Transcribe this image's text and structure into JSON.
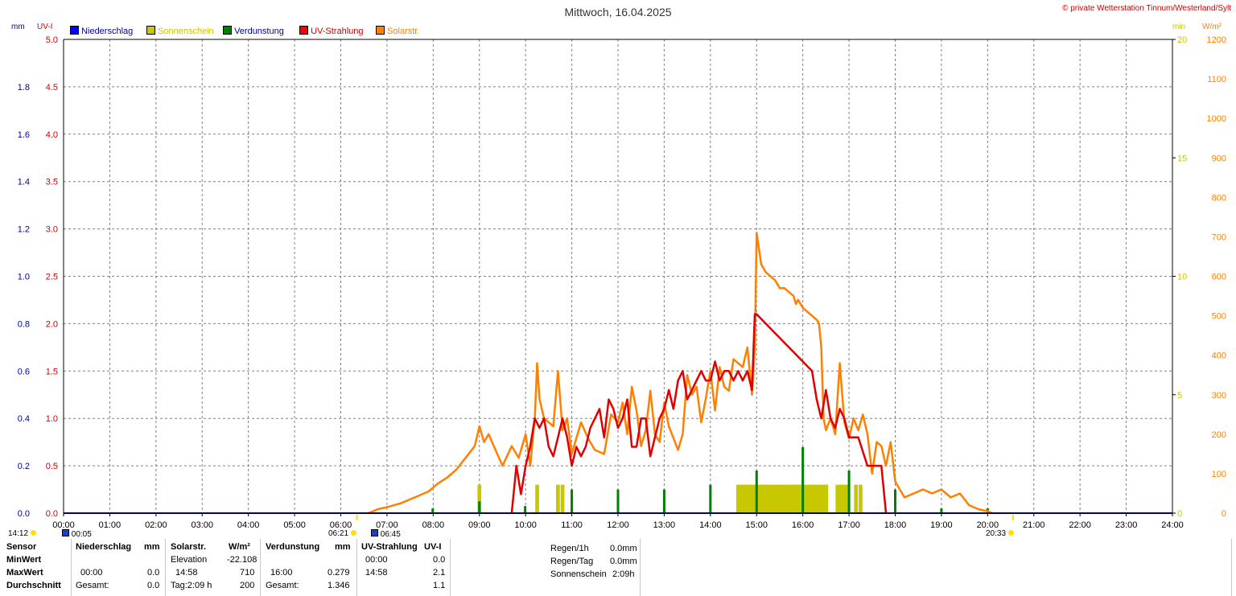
{
  "header": {
    "title": "Mittwoch, 16.04.2025",
    "copyright": "© private Wetterstation Tinnum/Westerland/Sylt"
  },
  "axes": {
    "left_outer_unit": "mm",
    "left_inner_unit": "UV-I",
    "right_inner_unit": "min",
    "right_outer_unit": "W/m²",
    "mm_ticks": [
      "0.0",
      "0.2",
      "0.4",
      "0.6",
      "0.8",
      "1.0",
      "1.2",
      "1.4",
      "1.6",
      "1.8"
    ],
    "uv_ticks": [
      "0.0",
      "0.5",
      "1.0",
      "1.5",
      "2.0",
      "2.5",
      "3.0",
      "3.5",
      "4.0",
      "4.5",
      "5.0"
    ],
    "min_ticks": [
      "0",
      "5",
      "10",
      "15",
      "20"
    ],
    "wm2_ticks": [
      "0",
      "100",
      "200",
      "300",
      "400",
      "500",
      "600",
      "700",
      "800",
      "900",
      "1000",
      "1100",
      "1200"
    ],
    "x_ticks": [
      "00:00",
      "01:00",
      "02:00",
      "03:00",
      "04:00",
      "05:00",
      "06:00",
      "07:00",
      "08:00",
      "09:00",
      "10:00",
      "11:00",
      "12:00",
      "13:00",
      "14:00",
      "15:00",
      "16:00",
      "17:00",
      "18:00",
      "19:00",
      "20:00",
      "21:00",
      "22:00",
      "23:00",
      "24:00"
    ]
  },
  "legend": [
    {
      "label": "Niederschlag",
      "color": "#0000ff",
      "text_color": "#0000a0"
    },
    {
      "label": "Sonnenschein",
      "color": "#c8c800",
      "text_color": "#c8c800"
    },
    {
      "label": "Verdunstung",
      "color": "#008000",
      "text_color": "#0000a0"
    },
    {
      "label": "UV-Strahlung",
      "color": "#ff0000",
      "text_color": "#d00000"
    },
    {
      "label": "Solarstr.",
      "color": "#ff8000",
      "text_color": "#ff8000"
    }
  ],
  "markers": {
    "moonrise_left": "14:12",
    "moon_time": "00:05",
    "sunrise": "06:21",
    "moon_time2": "06:45",
    "sunset": "20:33"
  },
  "stats": {
    "col1": {
      "h1": "Sensor",
      "r1": "MinWert",
      "r2": "MaxWert",
      "r3": "Durchschnitt"
    },
    "col2": {
      "h1": "Niederschlag",
      "h2": "mm",
      "max_time": "00:00",
      "max_val": "0.0",
      "avg_label": "Gesamt:",
      "avg_val": "0.0"
    },
    "col3": {
      "h1": "Solarstr.",
      "h2": "W/m²",
      "min_label": "Elevation",
      "min_val": "-22.108",
      "max_time": "14:58",
      "max_val": "710",
      "avg_label": "Tag:2:09 h",
      "avg_val": "200"
    },
    "col4": {
      "h1": "Verdunstung",
      "h2": "mm",
      "max_time": "16:00",
      "max_val": "0.279",
      "avg_label": "Gesamt:",
      "avg_val": "1.346"
    },
    "col5": {
      "h1": "UV-Strahlung",
      "h2": "UV-I",
      "min_time": "00:00",
      "min_val": "0.0",
      "max_time": "14:58",
      "max_val": "2.1",
      "avg_val": "1.1"
    },
    "col6": {
      "r1_label": "Regen/1h",
      "r1_val": "0.0mm",
      "r2_label": "Regen/Tag",
      "r2_val": "0.0mm",
      "r3_label": "Sonnenschein",
      "r3_val": "2:09h"
    }
  },
  "colors": {
    "grid": "#808080",
    "solar": "#ff8000",
    "uv": "#e00000",
    "sun": "#c8c800",
    "evap": "#008000",
    "left_mm": "#0000a0",
    "left_uv": "#d00000",
    "right_min": "#c8c800",
    "right_wm2": "#ff8000"
  },
  "chart_data": {
    "type": "line",
    "title": "Mittwoch, 16.04.2025",
    "x_unit": "hour",
    "xlim": [
      0,
      24
    ],
    "series": [
      {
        "name": "Solarstr.",
        "unit": "W/m²",
        "ylim": [
          0,
          1200
        ],
        "x": [
          6.6,
          6.8,
          7.0,
          7.3,
          7.6,
          7.9,
          8.1,
          8.3,
          8.5,
          8.7,
          8.9,
          9.0,
          9.1,
          9.2,
          9.35,
          9.5,
          9.7,
          9.85,
          10.0,
          10.1,
          10.2,
          10.25,
          10.3,
          10.4,
          10.5,
          10.6,
          10.7,
          10.8,
          10.9,
          11.0,
          11.1,
          11.2,
          11.35,
          11.5,
          11.7,
          11.85,
          12.0,
          12.1,
          12.2,
          12.3,
          12.4,
          12.5,
          12.6,
          12.7,
          12.8,
          12.9,
          13.0,
          13.1,
          13.2,
          13.3,
          13.4,
          13.5,
          13.6,
          13.7,
          13.8,
          13.9,
          14.0,
          14.1,
          14.2,
          14.3,
          14.4,
          14.5,
          14.6,
          14.7,
          14.8,
          14.9,
          14.96,
          15.0,
          15.1,
          15.2,
          15.3,
          15.4,
          15.5,
          15.6,
          15.7,
          15.8,
          15.85,
          15.9,
          16.0,
          16.1,
          16.2,
          16.3,
          16.35,
          16.4,
          16.45,
          16.5,
          16.6,
          16.7,
          16.8,
          16.9,
          17.0,
          17.1,
          17.2,
          17.3,
          17.4,
          17.5,
          17.6,
          17.7,
          17.8,
          17.9,
          18.0,
          18.1,
          18.2,
          18.4,
          18.6,
          18.8,
          19.0,
          19.2,
          19.4,
          19.6,
          19.8,
          20.0,
          20.1
        ],
        "values": [
          0,
          10,
          15,
          25,
          40,
          55,
          75,
          90,
          110,
          140,
          170,
          220,
          180,
          200,
          160,
          120,
          170,
          140,
          200,
          120,
          240,
          380,
          290,
          240,
          230,
          220,
          360,
          210,
          240,
          150,
          190,
          230,
          190,
          160,
          150,
          250,
          230,
          280,
          200,
          320,
          260,
          170,
          210,
          310,
          200,
          180,
          280,
          220,
          190,
          160,
          200,
          350,
          300,
          320,
          230,
          290,
          360,
          260,
          370,
          320,
          310,
          390,
          380,
          370,
          420,
          300,
          420,
          710,
          630,
          610,
          600,
          590,
          570,
          570,
          560,
          550,
          530,
          540,
          520,
          510,
          500,
          490,
          480,
          420,
          240,
          210,
          240,
          200,
          380,
          230,
          190,
          240,
          210,
          250,
          200,
          100,
          180,
          170,
          120,
          180,
          80,
          60,
          40,
          50,
          60,
          50,
          60,
          40,
          50,
          20,
          10,
          5,
          0
        ]
      },
      {
        "name": "UV-Strahlung",
        "unit": "UV-I",
        "ylim": [
          0,
          5
        ],
        "x": [
          9.7,
          9.8,
          9.9,
          10.0,
          10.1,
          10.2,
          10.3,
          10.4,
          10.5,
          10.6,
          10.7,
          10.8,
          10.9,
          11.0,
          11.1,
          11.2,
          11.3,
          11.4,
          11.5,
          11.6,
          11.7,
          11.8,
          11.9,
          12.0,
          12.1,
          12.2,
          12.3,
          12.4,
          12.5,
          12.6,
          12.7,
          12.8,
          12.9,
          13.0,
          13.1,
          13.2,
          13.3,
          13.4,
          13.5,
          13.6,
          13.7,
          13.8,
          13.9,
          14.0,
          14.1,
          14.2,
          14.3,
          14.4,
          14.5,
          14.6,
          14.7,
          14.8,
          14.9,
          14.96,
          15.0,
          15.2,
          15.4,
          15.6,
          15.8,
          16.0,
          16.2,
          16.3,
          16.4,
          16.5,
          16.6,
          16.7,
          16.8,
          16.9,
          17.0,
          17.2,
          17.4,
          17.45,
          17.5,
          17.7,
          17.78,
          17.8
        ],
        "values": [
          0.0,
          0.5,
          0.2,
          0.5,
          0.7,
          1.0,
          0.9,
          1.0,
          0.7,
          0.6,
          0.8,
          1.0,
          0.8,
          0.5,
          0.7,
          0.6,
          0.7,
          0.9,
          1.0,
          1.1,
          0.8,
          1.2,
          1.1,
          0.9,
          1.0,
          1.2,
          0.7,
          0.7,
          1.0,
          1.0,
          0.6,
          0.8,
          1.0,
          1.1,
          1.3,
          1.1,
          1.4,
          1.5,
          1.2,
          1.3,
          1.4,
          1.5,
          1.4,
          1.4,
          1.6,
          1.4,
          1.5,
          1.5,
          1.4,
          1.5,
          1.4,
          1.5,
          1.3,
          2.1,
          2.1,
          2.0,
          1.9,
          1.8,
          1.7,
          1.6,
          1.5,
          1.2,
          1.0,
          1.3,
          1.0,
          0.9,
          1.1,
          1.0,
          0.8,
          0.8,
          0.5,
          0.5,
          0.5,
          0.5,
          0.1,
          0.0
        ]
      },
      {
        "name": "Sonnenschein",
        "unit": "min",
        "ylim": [
          0,
          20
        ],
        "x": [
          9.0,
          10.25,
          10.7,
          10.8,
          14.6,
          14.7,
          14.8,
          14.9,
          15.0,
          15.1,
          15.2,
          15.3,
          15.4,
          15.5,
          15.6,
          15.7,
          15.8,
          15.9,
          16.0,
          16.1,
          16.2,
          16.3,
          16.4,
          16.5,
          16.75,
          16.85,
          16.95,
          17.15,
          17.25
        ],
        "values": [
          1,
          1,
          1,
          1,
          1,
          1,
          1,
          1,
          1,
          1,
          1,
          1,
          1,
          1,
          1,
          1,
          1,
          1,
          1,
          1,
          1,
          1,
          1,
          1,
          1,
          1,
          1,
          1,
          1
        ]
      },
      {
        "name": "Verdunstung",
        "unit": "mm",
        "ylim": [
          0,
          2
        ],
        "x": [
          7.99,
          9.0,
          9.99,
          11.0,
          12.0,
          13.0,
          14.0,
          15.0,
          16.0,
          17.0,
          18.0,
          19.0,
          20.0
        ],
        "values": [
          0.02,
          0.05,
          0.03,
          0.1,
          0.1,
          0.1,
          0.12,
          0.18,
          0.279,
          0.18,
          0.1,
          0.02,
          0.02
        ]
      }
    ]
  }
}
